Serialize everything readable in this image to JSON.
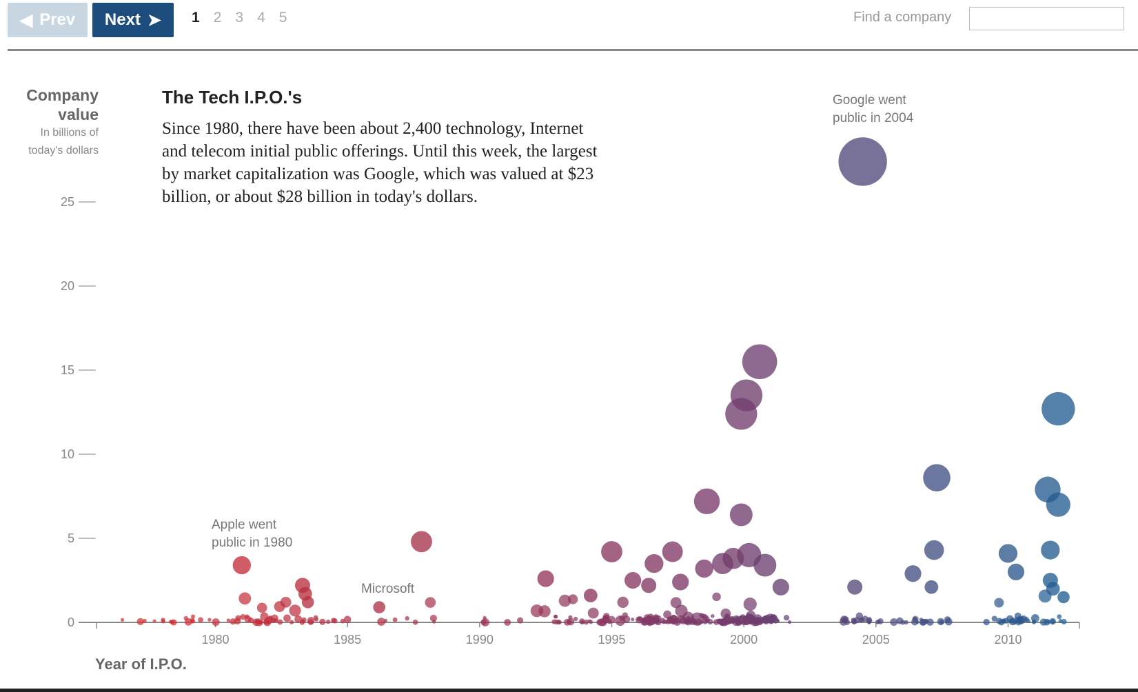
{
  "nav": {
    "prev_label": "Prev",
    "next_label": "Next",
    "pages": [
      "1",
      "2",
      "3",
      "4",
      "5"
    ],
    "active_page": "1"
  },
  "search": {
    "label": "Find a company",
    "value": ""
  },
  "header": {
    "title": "The Tech I.P.O.'s",
    "description": "Since 1980, there have been about 2,400 technology, Internet and telecom initial public offerings. Until this week, the largest by market capitalization was Google, which was valued at $23 billion, or about $28 billion in today's dollars."
  },
  "yaxis": {
    "title_line1": "Company",
    "title_line2": "value",
    "subtitle_line1": "In billions of",
    "subtitle_line2": "today's dollars"
  },
  "xaxis": {
    "title": "Year of I.P.O."
  },
  "colors": {
    "early": "#d82c2c",
    "mid": "#7a3a6a",
    "late": "#1f5f93",
    "button_active": "#1c4d7d",
    "button_disabled": "#c8d6e2"
  },
  "chart_data": {
    "type": "scatter",
    "xlabel": "Year of I.P.O.",
    "ylabel": "Company value",
    "xlim": [
      1975.5,
      2012.7
    ],
    "ylim": [
      0,
      27
    ],
    "xticks": [
      "1980",
      "1985",
      "1990",
      "1995",
      "2000",
      "2005",
      "2010"
    ],
    "yticks": [
      "0",
      "5",
      "10",
      "15",
      "20",
      "25"
    ],
    "size_encodes": "value",
    "points": [
      {
        "x": 2004.5,
        "y": 27.4,
        "r": 1.6
      },
      {
        "x": 2000.6,
        "y": 15.5,
        "r": 1.15
      },
      {
        "x": 2000.1,
        "y": 13.5,
        "r": 1.05
      },
      {
        "x": 1999.9,
        "y": 12.4,
        "r": 1.05
      },
      {
        "x": 2011.9,
        "y": 12.7,
        "r": 1.1
      },
      {
        "x": 2007.3,
        "y": 8.6,
        "r": 0.9
      },
      {
        "x": 2011.5,
        "y": 7.9,
        "r": 0.85
      },
      {
        "x": 2011.9,
        "y": 7.0,
        "r": 0.8
      },
      {
        "x": 1998.6,
        "y": 7.2,
        "r": 0.85
      },
      {
        "x": 1999.9,
        "y": 6.4,
        "r": 0.75
      },
      {
        "x": 1987.8,
        "y": 4.8,
        "r": 0.7
      },
      {
        "x": 1981.0,
        "y": 3.4,
        "r": 0.6
      },
      {
        "x": 1995.0,
        "y": 4.2,
        "r": 0.7
      },
      {
        "x": 1997.3,
        "y": 4.2,
        "r": 0.68
      },
      {
        "x": 1996.6,
        "y": 3.5,
        "r": 0.62
      },
      {
        "x": 2007.2,
        "y": 4.3,
        "r": 0.65
      },
      {
        "x": 2010.0,
        "y": 4.1,
        "r": 0.62
      },
      {
        "x": 2011.6,
        "y": 4.3,
        "r": 0.62
      },
      {
        "x": 2010.3,
        "y": 3.0,
        "r": 0.55
      },
      {
        "x": 2006.4,
        "y": 2.9,
        "r": 0.55
      },
      {
        "x": 1992.5,
        "y": 2.6,
        "r": 0.55
      },
      {
        "x": 1983.3,
        "y": 2.2,
        "r": 0.5
      },
      {
        "x": 1983.4,
        "y": 1.7,
        "r": 0.45
      },
      {
        "x": 1983.5,
        "y": 1.2,
        "r": 0.4
      },
      {
        "x": 1986.2,
        "y": 0.9,
        "r": 0.4
      },
      {
        "x": 2004.2,
        "y": 2.1,
        "r": 0.5
      },
      {
        "x": 2007.1,
        "y": 2.1,
        "r": 0.45
      },
      {
        "x": 1998.5,
        "y": 3.2,
        "r": 0.6
      },
      {
        "x": 1999.2,
        "y": 3.5,
        "r": 0.7
      },
      {
        "x": 2000.2,
        "y": 4.0,
        "r": 0.8
      },
      {
        "x": 1999.6,
        "y": 3.8,
        "r": 0.7
      },
      {
        "x": 2000.8,
        "y": 3.4,
        "r": 0.75
      },
      {
        "x": 1995.8,
        "y": 2.5,
        "r": 0.55
      },
      {
        "x": 1996.4,
        "y": 2.2,
        "r": 0.5
      },
      {
        "x": 1997.6,
        "y": 2.4,
        "r": 0.55
      },
      {
        "x": 2001.4,
        "y": 2.1,
        "r": 0.55
      },
      {
        "x": 1994.2,
        "y": 1.6,
        "r": 0.45
      },
      {
        "x": 2011.6,
        "y": 2.5,
        "r": 0.5
      },
      {
        "x": 2011.7,
        "y": 2.0,
        "r": 0.45
      },
      {
        "x": 2012.1,
        "y": 1.5,
        "r": 0.4
      }
    ]
  }
}
